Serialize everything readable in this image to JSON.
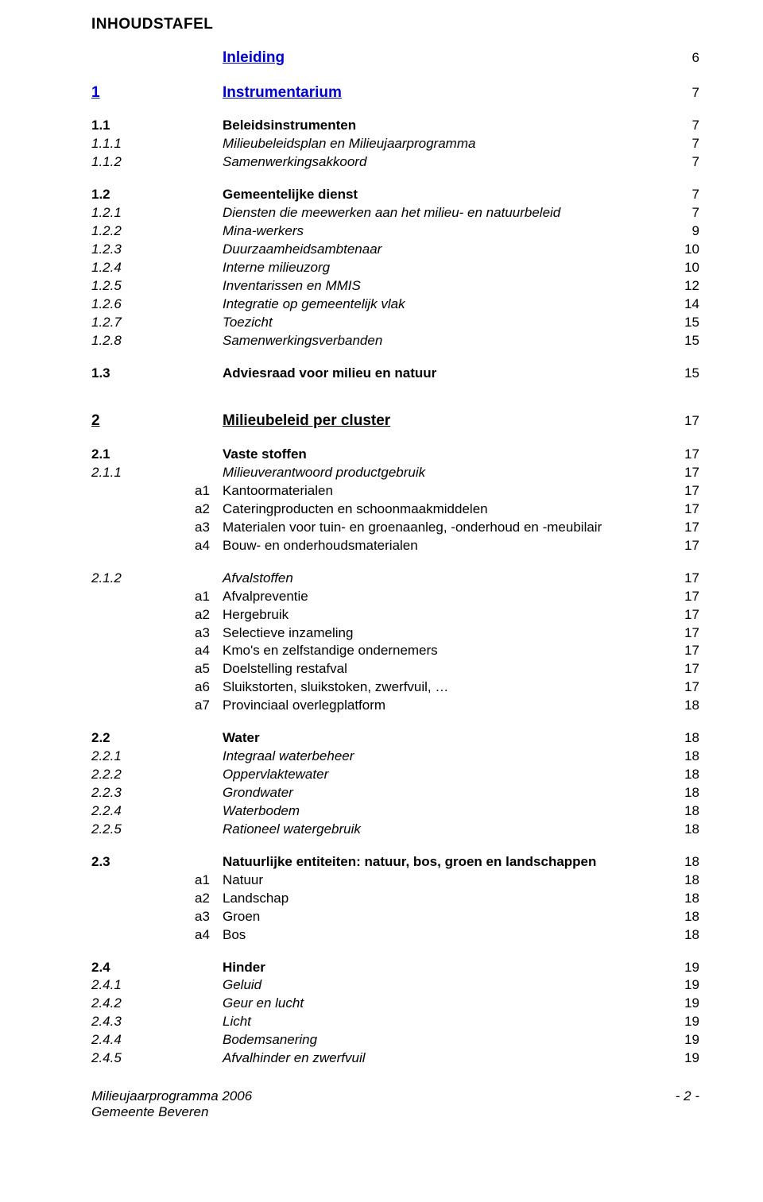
{
  "title": "INHOUDSTAFEL",
  "footer": {
    "line1": "Milieujaarprogramma 2006",
    "line2": "Gemeente Beveren",
    "pagenum": "- 2 -"
  },
  "rows": [
    {
      "type": "heading",
      "num": "",
      "sub": "",
      "label": "Inleiding",
      "page": "6",
      "bold": true,
      "underline": true,
      "blue": true,
      "big": true
    },
    {
      "type": "gap"
    },
    {
      "type": "heading",
      "num": "1",
      "sub": "",
      "label": "Instrumentarium",
      "page": "7",
      "bold": true,
      "underline": true,
      "blue": true,
      "big": true
    },
    {
      "type": "gap"
    },
    {
      "num": "1.1",
      "sub": "",
      "label": "Beleidsinstrumenten",
      "page": "7",
      "bold": true
    },
    {
      "num": "1.1.1",
      "sub": "",
      "label": "Milieubeleidsplan en Milieujaarprogramma",
      "page": "7",
      "italic": true
    },
    {
      "num": "1.1.2",
      "sub": "",
      "label": "Samenwerkingsakkoord",
      "page": "7",
      "italic": true
    },
    {
      "type": "gap"
    },
    {
      "num": "1.2",
      "sub": "",
      "label": "Gemeentelijke dienst",
      "page": "7",
      "bold": true
    },
    {
      "num": "1.2.1",
      "sub": "",
      "label": "Diensten die meewerken aan het milieu- en natuurbeleid",
      "page": "7",
      "italic": true
    },
    {
      "num": "1.2.2",
      "sub": "",
      "label": "Mina-werkers",
      "page": "9",
      "italic": true
    },
    {
      "num": "1.2.3",
      "sub": "",
      "label": "Duurzaamheidsambtenaar",
      "page": "10",
      "italic": true
    },
    {
      "num": "1.2.4",
      "sub": "",
      "label": "Interne milieuzorg",
      "page": "10",
      "italic": true
    },
    {
      "num": "1.2.5",
      "sub": "",
      "label": "Inventarissen en MMIS",
      "page": "12",
      "italic": true
    },
    {
      "num": "1.2.6",
      "sub": "",
      "label": "Integratie op gemeentelijk vlak",
      "page": "14",
      "italic": true
    },
    {
      "num": "1.2.7",
      "sub": "",
      "label": "Toezicht",
      "page": "15",
      "italic": true
    },
    {
      "num": "1.2.8",
      "sub": "",
      "label": "Samenwerkingsverbanden",
      "page": "15",
      "italic": true
    },
    {
      "type": "gap"
    },
    {
      "num": "1.3",
      "sub": "",
      "label": "Adviesraad voor milieu en natuur",
      "page": "15",
      "bold": true
    },
    {
      "type": "gap"
    },
    {
      "type": "gap"
    },
    {
      "type": "heading",
      "num": "2",
      "sub": "",
      "label": "Milieubeleid per cluster",
      "page": "17",
      "bold": true,
      "underline": true,
      "big": true
    },
    {
      "type": "gap"
    },
    {
      "num": "2.1",
      "sub": "",
      "label": "Vaste stoffen",
      "page": "17",
      "bold": true
    },
    {
      "num": "2.1.1",
      "sub": "",
      "label": "Milieuverantwoord productgebruik",
      "page": "17",
      "italic": true
    },
    {
      "num": "",
      "sub": "a1",
      "label": "Kantoormaterialen",
      "page": "17"
    },
    {
      "num": "",
      "sub": "a2",
      "label": "Cateringproducten en schoonmaakmiddelen",
      "page": "17"
    },
    {
      "num": "",
      "sub": "a3",
      "label": "Materialen voor tuin- en groenaanleg, -onderhoud en -meubilair",
      "page": "17"
    },
    {
      "num": "",
      "sub": "a4",
      "label": "Bouw- en onderhoudsmaterialen",
      "page": "17"
    },
    {
      "type": "gap"
    },
    {
      "num": "2.1.2",
      "sub": "",
      "label": "Afvalstoffen",
      "page": "17",
      "italic": true
    },
    {
      "num": "",
      "sub": "a1",
      "label": "Afvalpreventie",
      "page": "17"
    },
    {
      "num": "",
      "sub": "a2",
      "label": "Hergebruik",
      "page": "17"
    },
    {
      "num": "",
      "sub": "a3",
      "label": "Selectieve inzameling",
      "page": "17"
    },
    {
      "num": "",
      "sub": "a4",
      "label": "Kmo's en zelfstandige ondernemers",
      "page": "17"
    },
    {
      "num": "",
      "sub": "a5",
      "label": "Doelstelling restafval",
      "page": "17"
    },
    {
      "num": "",
      "sub": "a6",
      "label": "Sluikstorten, sluikstoken, zwerfvuil, …",
      "page": "17"
    },
    {
      "num": "",
      "sub": "a7",
      "label": "Provinciaal overlegplatform",
      "page": "18"
    },
    {
      "type": "gap"
    },
    {
      "num": "2.2",
      "sub": "",
      "label": "Water",
      "page": "18",
      "bold": true
    },
    {
      "num": "2.2.1",
      "sub": "",
      "label": "Integraal waterbeheer",
      "page": "18",
      "italic": true
    },
    {
      "num": "2.2.2",
      "sub": "",
      "label": "Oppervlaktewater",
      "page": "18",
      "italic": true
    },
    {
      "num": "2.2.3",
      "sub": "",
      "label": "Grondwater",
      "page": "18",
      "italic": true
    },
    {
      "num": "2.2.4",
      "sub": "",
      "label": "Waterbodem",
      "page": "18",
      "italic": true
    },
    {
      "num": "2.2.5",
      "sub": "",
      "label": "Rationeel watergebruik",
      "page": "18",
      "italic": true
    },
    {
      "type": "gap"
    },
    {
      "num": "2.3",
      "sub": "",
      "label": "Natuurlijke entiteiten: natuur, bos, groen en landschappen",
      "page": "18",
      "bold": true
    },
    {
      "num": "",
      "sub": "a1",
      "label": "Natuur",
      "page": "18"
    },
    {
      "num": "",
      "sub": "a2",
      "label": "Landschap",
      "page": "18"
    },
    {
      "num": "",
      "sub": "a3",
      "label": "Groen",
      "page": "18"
    },
    {
      "num": "",
      "sub": "a4",
      "label": "Bos",
      "page": "18"
    },
    {
      "type": "gap"
    },
    {
      "num": "2.4",
      "sub": "",
      "label": "Hinder",
      "page": "19",
      "bold": true
    },
    {
      "num": "2.4.1",
      "sub": "",
      "label": "Geluid",
      "page": "19",
      "italic": true
    },
    {
      "num": "2.4.2",
      "sub": "",
      "label": "Geur en lucht",
      "page": "19",
      "italic": true
    },
    {
      "num": "2.4.3",
      "sub": "",
      "label": "Licht",
      "page": "19",
      "italic": true
    },
    {
      "num": "2.4.4",
      "sub": "",
      "label": "Bodemsanering",
      "page": "19",
      "italic": true
    },
    {
      "num": "2.4.5",
      "sub": "",
      "label": "Afvalhinder en zwerfvuil",
      "page": "19",
      "italic": true
    }
  ]
}
